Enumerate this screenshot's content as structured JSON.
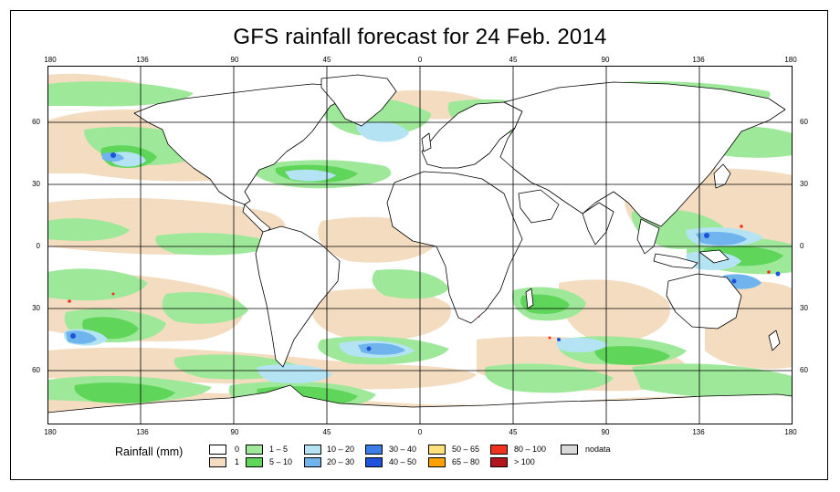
{
  "title": "GFS rainfall forecast for 24 Feb. 2014",
  "lon_ticks": [
    "180",
    "136",
    "90",
    "45",
    "0",
    "45",
    "90",
    "136",
    "180"
  ],
  "lat_ticks": [
    "60",
    "30",
    "0",
    "30",
    "60"
  ],
  "legend": {
    "title": "Rainfall (mm)",
    "items": [
      {
        "label": "0",
        "color": "#ffffff"
      },
      {
        "label": "1",
        "color": "#f3dcc0"
      },
      {
        "label": "1 – 5",
        "color": "#9ee89a"
      },
      {
        "label": "5 – 10",
        "color": "#5fd65a"
      },
      {
        "label": "10 – 20",
        "color": "#b4e4f4"
      },
      {
        "label": "20 – 30",
        "color": "#6fb4ec"
      },
      {
        "label": "30 – 40",
        "color": "#3d7ee6"
      },
      {
        "label": "40 – 50",
        "color": "#1f52dc"
      },
      {
        "label": "50 – 65",
        "color": "#ffe07a"
      },
      {
        "label": "65 – 80",
        "color": "#ffa200"
      },
      {
        "label": "80 – 100",
        "color": "#f2321e"
      },
      {
        "label": "> 100",
        "color": "#b4141e"
      },
      {
        "label": "nodata",
        "color": "#d9d9d9"
      }
    ]
  },
  "colors": {
    "ocean_white": "#ffffff",
    "rain_1": "#f3dcc0",
    "rain_1_5": "#9ee89a",
    "rain_5_10": "#5fd65a",
    "rain_10_20": "#b4e4f4",
    "rain_20_30": "#6fb4ec",
    "rain_40_50": "#1f52dc",
    "rain_80_100": "#f2321e",
    "coast": "#000000"
  }
}
